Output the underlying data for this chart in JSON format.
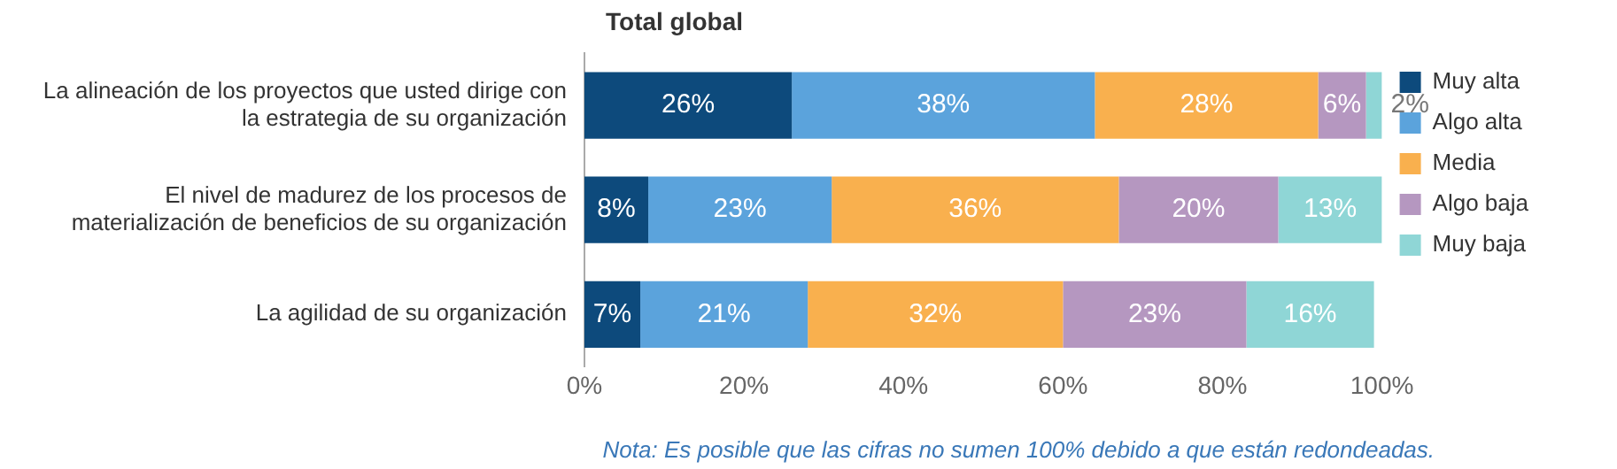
{
  "chart_data": {
    "type": "bar",
    "orientation": "horizontal",
    "stacked": true,
    "title": "Total global",
    "categories": [
      "La alineación de los proyectos que usted dirige con la estrategia de su organización",
      "El nivel de madurez de los procesos de materialización de beneficios de su organización",
      "La agilidad de su organización"
    ],
    "series": [
      {
        "name": "Muy alta",
        "color": "#0d4a7c",
        "values": [
          26,
          8,
          7
        ],
        "value_labels": [
          "26%",
          "8%",
          "7%"
        ]
      },
      {
        "name": "Algo alta",
        "color": "#5ba3dc",
        "values": [
          38,
          23,
          21
        ],
        "value_labels": [
          "38%",
          "23%",
          "21%"
        ]
      },
      {
        "name": "Media",
        "color": "#f9b04e",
        "values": [
          28,
          36,
          32
        ],
        "value_labels": [
          "28%",
          "36%",
          "32%"
        ]
      },
      {
        "name": "Algo baja",
        "color": "#b597c0",
        "values": [
          6,
          20,
          23
        ],
        "value_labels": [
          "6%",
          "20%",
          "23%"
        ]
      },
      {
        "name": "Muy baja",
        "color": "#8fd6d6",
        "values": [
          2,
          13,
          16
        ],
        "value_labels": [
          "2%",
          "13%",
          "16%"
        ]
      }
    ],
    "xlim": [
      0,
      100
    ],
    "xticks": [
      {
        "value": 0,
        "label": "0%"
      },
      {
        "value": 20,
        "label": "20%"
      },
      {
        "value": 40,
        "label": "40%"
      },
      {
        "value": 60,
        "label": "60%"
      },
      {
        "value": 80,
        "label": "80%"
      },
      {
        "value": 100,
        "label": "100%"
      }
    ],
    "grid": false,
    "legend": "right",
    "annotations": [
      "Nota: Es posible que las cifras no sumen 100% debido a que están redondeadas."
    ]
  }
}
